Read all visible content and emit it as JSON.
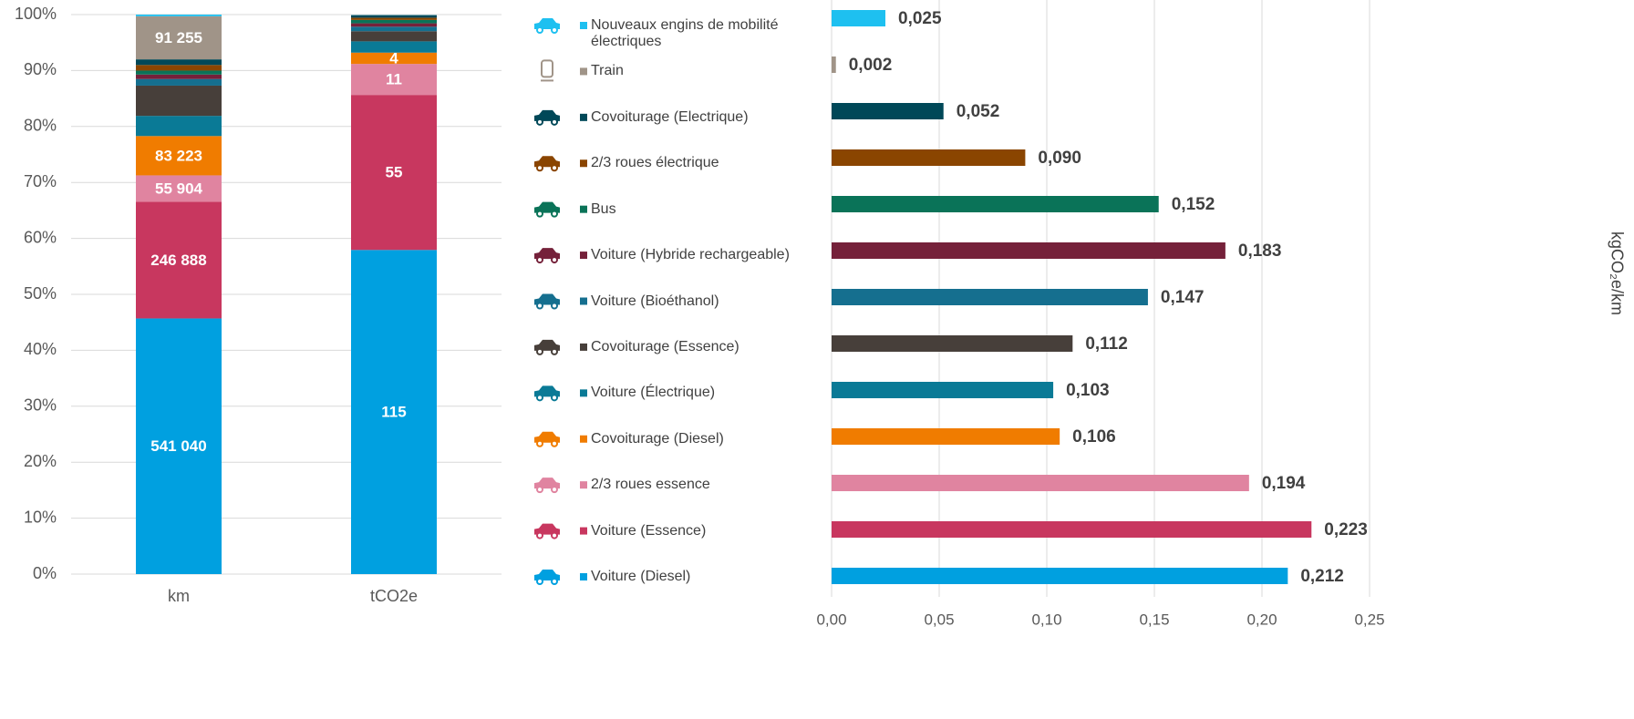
{
  "chart_data": [
    {
      "type": "bar",
      "stacking": "percent",
      "categories": [
        "km",
        "tCO2e"
      ],
      "ylim": [
        0,
        100
      ],
      "yticks": [
        {
          "value": 0,
          "label": "0%"
        },
        {
          "value": 10,
          "label": "10%"
        },
        {
          "value": 20,
          "label": "20%"
        },
        {
          "value": 30,
          "label": "30%"
        },
        {
          "value": 40,
          "label": "40%"
        },
        {
          "value": 50,
          "label": "50%"
        },
        {
          "value": 60,
          "label": "60%"
        },
        {
          "value": 70,
          "label": "70%"
        },
        {
          "value": 80,
          "label": "80%"
        },
        {
          "value": 90,
          "label": "90%"
        },
        {
          "value": 100,
          "label": "100%"
        }
      ],
      "grid": true,
      "series": [
        {
          "name": "Voiture (Diesel)",
          "color": "#00a0e0",
          "values": [
            541040,
            115
          ],
          "value_labels": [
            "541 040",
            "115"
          ]
        },
        {
          "name": "Voiture (Essence)",
          "color": "#c8375f",
          "values": [
            246888,
            55
          ],
          "value_labels": [
            "246 888",
            "55"
          ]
        },
        {
          "name": "2/3 roues essence",
          "color": "#e084a0",
          "values": [
            55904,
            11
          ],
          "value_labels": [
            "55 904",
            "11"
          ]
        },
        {
          "name": "Covoiturage (Diesel)",
          "color": "#f07c00",
          "values": [
            83223,
            4
          ],
          "value_labels": [
            "83 223",
            "4"
          ]
        },
        {
          "name": "Voiture (Électrique)",
          "color": "#0a7a96",
          "values": [
            42700,
            4
          ],
          "value_labels": [
            null,
            null
          ]
        },
        {
          "name": "Covoiturage (Essence)",
          "color": "#473f3a",
          "values": [
            64000,
            3.6
          ],
          "value_labels": [
            null,
            null
          ]
        },
        {
          "name": "Voiture (Bioéthanol)",
          "color": "#156f8f",
          "values": [
            14000,
            1.6
          ],
          "value_labels": [
            null,
            null
          ]
        },
        {
          "name": "Voiture (Hybride rechargeable)",
          "color": "#75213a",
          "values": [
            9500,
            1.2
          ],
          "value_labels": [
            null,
            null
          ]
        },
        {
          "name": "Bus",
          "color": "#0a7358",
          "values": [
            8300,
            1.2
          ],
          "value_labels": [
            null,
            null
          ]
        },
        {
          "name": "2/3 roues électrique",
          "color": "#8a4500",
          "values": [
            11900,
            0.8
          ],
          "value_labels": [
            null,
            null
          ]
        },
        {
          "name": "Covoiturage (Electrique)",
          "color": "#004858",
          "values": [
            11900,
            0.8
          ],
          "value_labels": [
            null,
            null
          ]
        },
        {
          "name": "Train",
          "color": "#a09488",
          "values": [
            91255,
            0.2
          ],
          "value_labels": [
            "91 255",
            null
          ]
        },
        {
          "name": "Nouveaux engins de mobilité électriques",
          "color": "#1ec0f0",
          "values": [
            3500,
            0.1
          ],
          "value_labels": [
            null,
            null
          ]
        }
      ]
    },
    {
      "type": "barh",
      "values": [
        0.212,
        0.223,
        0.194,
        0.106,
        0.103,
        0.112,
        0.147,
        0.183,
        0.152,
        0.09,
        0.052,
        0.002,
        0.025
      ],
      "value_labels": [
        "0,212",
        "0,223",
        "0,194",
        "0,106",
        "0,103",
        "0,112",
        "0,147",
        "0,183",
        "0,152",
        "0,090",
        "0,052",
        "0,002",
        "0,025"
      ],
      "xlim": [
        0,
        0.25
      ],
      "xticks": [
        {
          "value": 0,
          "label": "0,00"
        },
        {
          "value": 0.05,
          "label": "0,05"
        },
        {
          "value": 0.1,
          "label": "0,10"
        },
        {
          "value": 0.15,
          "label": "0,15"
        },
        {
          "value": 0.2,
          "label": "0,20"
        },
        {
          "value": 0.25,
          "label": "0,25"
        }
      ],
      "grid": true,
      "y_label": "kgCO₂e/km"
    }
  ]
}
